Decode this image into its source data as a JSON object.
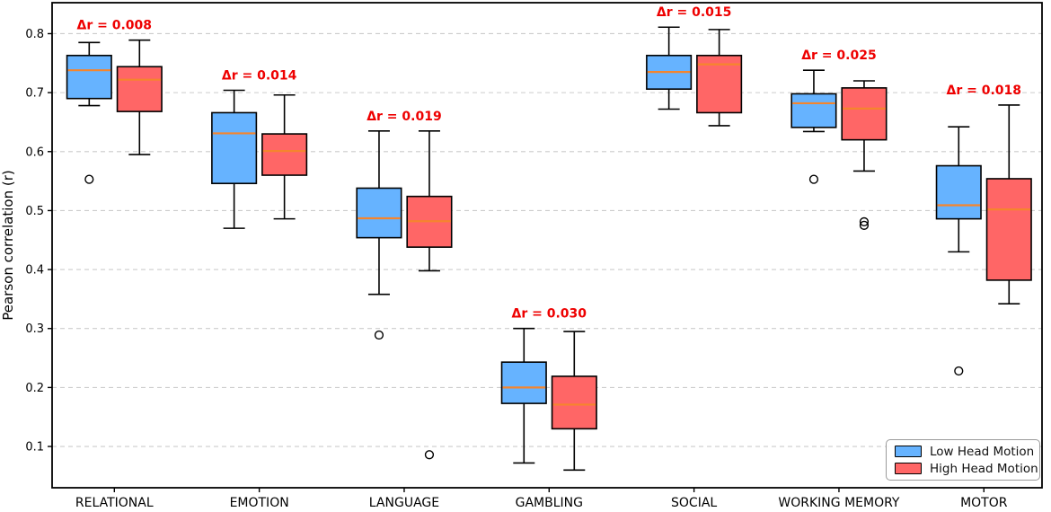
{
  "chart_data": {
    "type": "boxplot",
    "title": "",
    "xlabel": "",
    "ylabel": "Pearson correlation (r)",
    "ylim": [
      0.03,
      0.8525
    ],
    "yticks": [
      0.1,
      0.2,
      0.3,
      0.4,
      0.5,
      0.6,
      0.7,
      0.8
    ],
    "grid": "horizontal-dashed",
    "legend_position": "lower-right",
    "categories": [
      "RELATIONAL",
      "EMOTION",
      "LANGUAGE",
      "GAMBLING",
      "SOCIAL",
      "WORKING MEMORY",
      "MOTOR"
    ],
    "annotations": [
      "Δr = 0.008",
      "Δr = 0.014",
      "Δr = 0.019",
      "Δr = 0.030",
      "Δr = 0.015",
      "Δr = 0.025",
      "Δr = 0.018"
    ],
    "colors": {
      "low": "#66b3ff",
      "high": "#ff6666",
      "median": "#f5852d",
      "annotation": "#ee0000",
      "grid": "#cccccc",
      "frame": "#000000"
    },
    "series": [
      {
        "name": "Low Head Motion",
        "color": "#66b3ff",
        "boxes": [
          {
            "whislo": 0.678,
            "q1": 0.69,
            "med": 0.738,
            "q3": 0.763,
            "whishi": 0.785,
            "fliers": [
              0.553
            ]
          },
          {
            "whislo": 0.47,
            "q1": 0.546,
            "med": 0.631,
            "q3": 0.666,
            "whishi": 0.704,
            "fliers": []
          },
          {
            "whislo": 0.358,
            "q1": 0.454,
            "med": 0.487,
            "q3": 0.538,
            "whishi": 0.635,
            "fliers": [
              0.289
            ]
          },
          {
            "whislo": 0.072,
            "q1": 0.173,
            "med": 0.2,
            "q3": 0.243,
            "whishi": 0.3,
            "fliers": []
          },
          {
            "whislo": 0.672,
            "q1": 0.706,
            "med": 0.735,
            "q3": 0.763,
            "whishi": 0.811,
            "fliers": []
          },
          {
            "whislo": 0.634,
            "q1": 0.641,
            "med": 0.682,
            "q3": 0.698,
            "whishi": 0.738,
            "fliers": [
              0.553
            ]
          },
          {
            "whislo": 0.43,
            "q1": 0.486,
            "med": 0.509,
            "q3": 0.576,
            "whishi": 0.642,
            "fliers": [
              0.228
            ]
          }
        ]
      },
      {
        "name": "High Head Motion",
        "color": "#ff6666",
        "boxes": [
          {
            "whislo": 0.595,
            "q1": 0.668,
            "med": 0.722,
            "q3": 0.744,
            "whishi": 0.789,
            "fliers": []
          },
          {
            "whislo": 0.486,
            "q1": 0.56,
            "med": 0.601,
            "q3": 0.63,
            "whishi": 0.696,
            "fliers": []
          },
          {
            "whislo": 0.398,
            "q1": 0.438,
            "med": 0.482,
            "q3": 0.524,
            "whishi": 0.635,
            "fliers": [
              0.086
            ]
          },
          {
            "whislo": 0.06,
            "q1": 0.13,
            "med": 0.171,
            "q3": 0.219,
            "whishi": 0.295,
            "fliers": []
          },
          {
            "whislo": 0.644,
            "q1": 0.666,
            "med": 0.748,
            "q3": 0.763,
            "whishi": 0.807,
            "fliers": []
          },
          {
            "whislo": 0.567,
            "q1": 0.62,
            "med": 0.673,
            "q3": 0.708,
            "whishi": 0.72,
            "fliers": [
              0.475,
              0.481
            ]
          },
          {
            "whislo": 0.342,
            "q1": 0.382,
            "med": 0.502,
            "q3": 0.554,
            "whishi": 0.679,
            "fliers": []
          }
        ]
      }
    ]
  },
  "legend": {
    "items": [
      {
        "label": "Low Head Motion",
        "color": "#66b3ff"
      },
      {
        "label": "High Head Motion",
        "color": "#ff6666"
      }
    ]
  }
}
